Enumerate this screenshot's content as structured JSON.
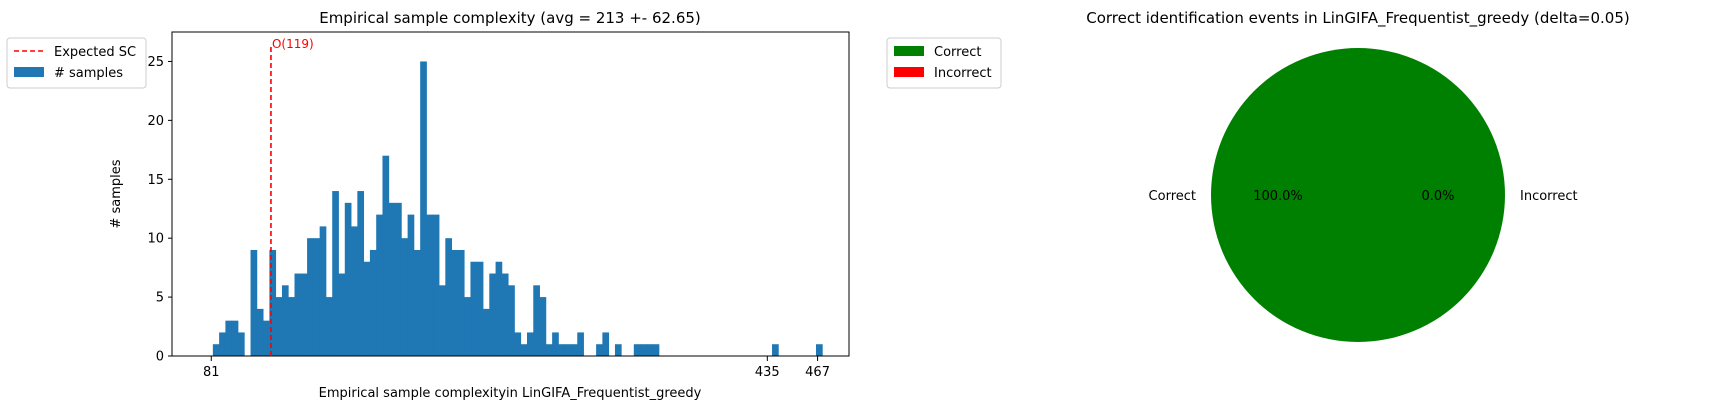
{
  "chart_data": [
    {
      "type": "bar",
      "title": "Empirical sample complexity (avg = 213 +- 62.65)",
      "xlabel": "Empirical sample complexityin LinGIFA_Frequentist_greedy",
      "ylabel": "# samples",
      "xlim": [
        56,
        487
      ],
      "ylim": [
        0,
        27.5
      ],
      "yticks": [
        0,
        5,
        10,
        15,
        20,
        25
      ],
      "xticks": [
        81,
        435,
        467
      ],
      "grid": false,
      "legend_position": "upper-left-outside",
      "legend": [
        {
          "label": "Expected SC",
          "style": "dashed-line",
          "color": "#ff0000"
        },
        {
          "label": "# samples",
          "style": "patch",
          "color": "#1f77b4"
        }
      ],
      "bar_color": "#1f77b4",
      "bin_width": 4,
      "bin_left_edges": [
        82,
        86,
        90,
        94,
        98,
        102,
        106,
        110,
        114,
        118,
        122,
        126,
        130,
        134,
        138,
        142,
        146,
        150,
        154,
        158,
        162,
        166,
        170,
        174,
        178,
        182,
        186,
        190,
        194,
        198,
        202,
        206,
        210,
        214,
        218,
        222,
        226,
        230,
        234,
        238,
        242,
        246,
        250,
        254,
        258,
        262,
        266,
        270,
        274,
        278,
        282,
        286,
        290,
        294,
        298,
        302,
        306,
        310,
        314,
        318,
        322,
        326,
        330,
        334,
        338,
        342,
        346,
        350,
        354,
        358,
        362,
        366,
        370,
        374,
        378,
        382,
        386,
        390,
        394,
        398,
        402,
        406,
        410,
        414,
        418,
        422,
        426,
        430,
        434,
        438,
        442,
        446,
        450,
        454,
        458,
        462,
        466
      ],
      "values": [
        1,
        2,
        3,
        3,
        2,
        0,
        9,
        4,
        3,
        9,
        5,
        6,
        5,
        7,
        7,
        10,
        10,
        11,
        5,
        14,
        7,
        13,
        11,
        14,
        8,
        9,
        12,
        17,
        13,
        13,
        10,
        12,
        9,
        25,
        12,
        12,
        6,
        10,
        9,
        9,
        5,
        8,
        8,
        4,
        7,
        8,
        7,
        6,
        2,
        1,
        2,
        6,
        5,
        1,
        2,
        1,
        1,
        1,
        2,
        0,
        0,
        1,
        2,
        0,
        1,
        0,
        0,
        1,
        1,
        1,
        1,
        0,
        0,
        0,
        0,
        0,
        0,
        0,
        0,
        0,
        0,
        0,
        0,
        0,
        0,
        0,
        0,
        0,
        0,
        1,
        0,
        0,
        0,
        0,
        0,
        0,
        1
      ],
      "reference_line": {
        "x": 119,
        "label": "O(119)",
        "color": "#ff0000"
      }
    },
    {
      "type": "pie",
      "title": "Correct identification events in LinGIFA_Frequentist_greedy (delta=0.05)",
      "slices": [
        {
          "label": "Correct",
          "value": 100.0,
          "pct_label": "100.0%",
          "color": "#008000"
        },
        {
          "label": "Incorrect",
          "value": 0.0,
          "pct_label": "0.0%",
          "color": "#ff0000"
        }
      ],
      "legend_position": "upper-left-outside",
      "legend": [
        {
          "label": "Correct",
          "color": "#008000"
        },
        {
          "label": "Incorrect",
          "color": "#ff0000"
        }
      ]
    }
  ]
}
